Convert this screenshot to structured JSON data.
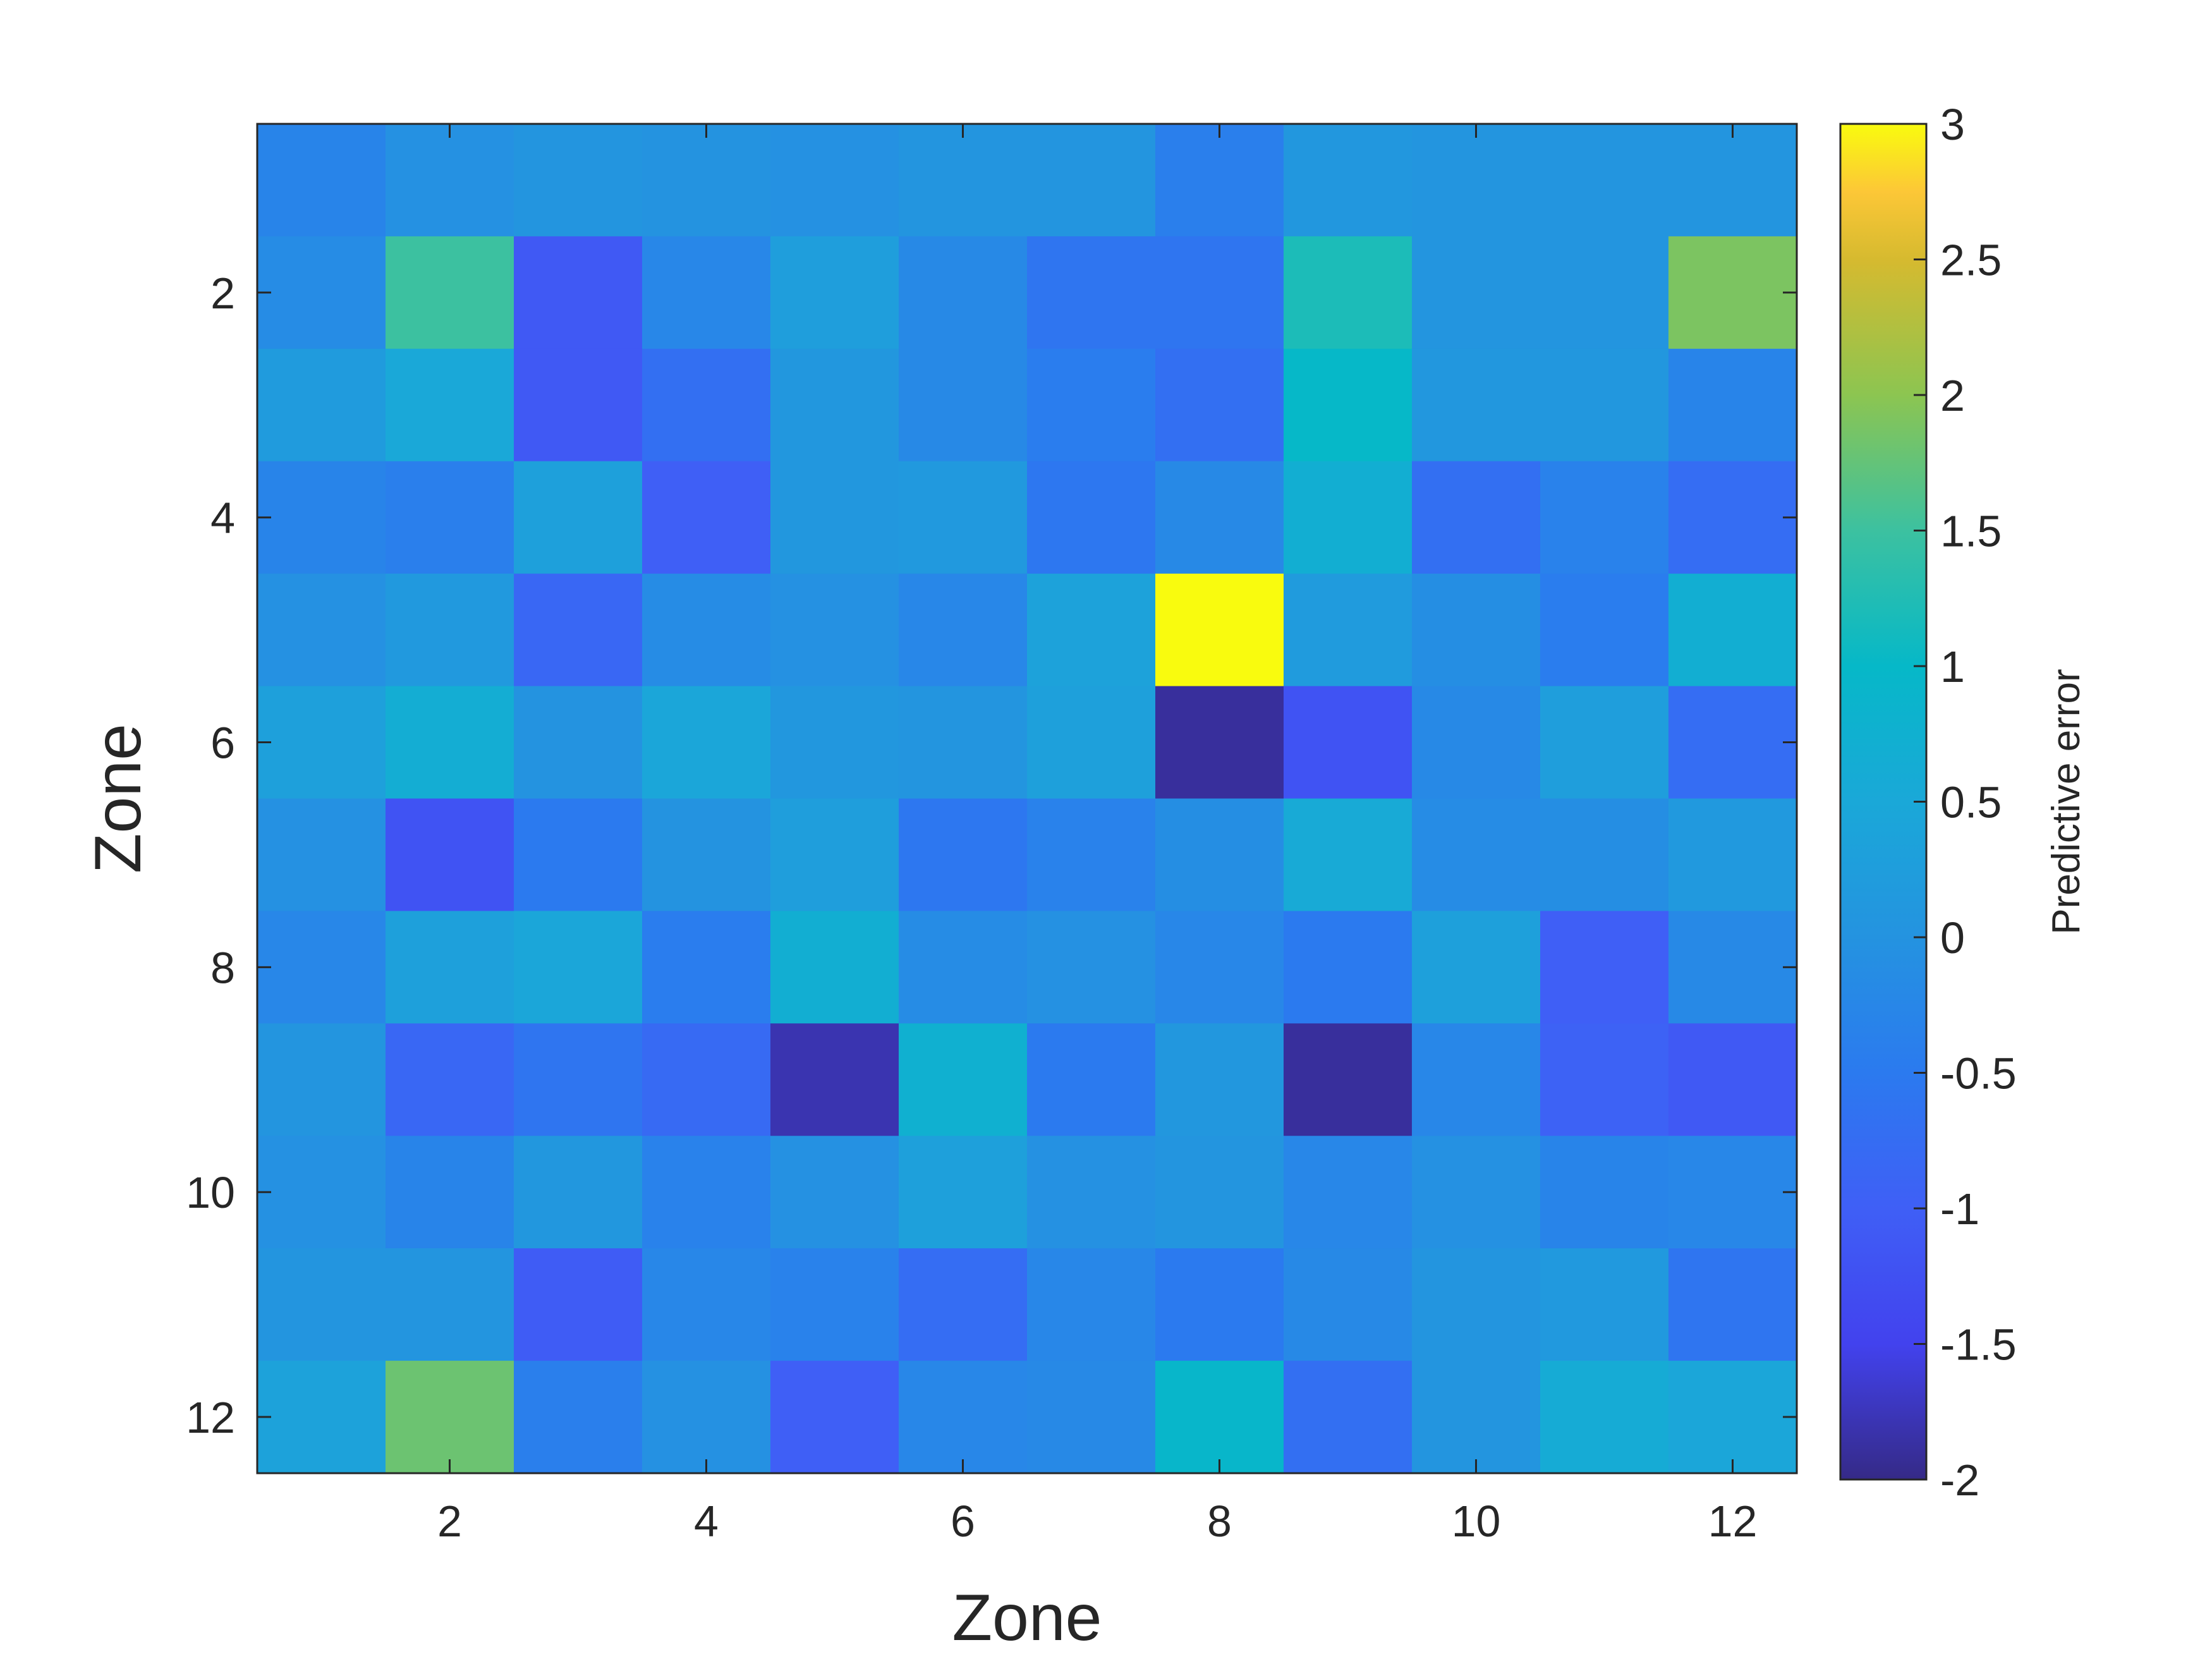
{
  "chart_data": {
    "type": "heatmap",
    "title": "",
    "xlabel": "Zone",
    "ylabel": "Zone",
    "x": [
      1,
      2,
      3,
      4,
      5,
      6,
      7,
      8,
      9,
      10,
      11,
      12
    ],
    "y": [
      1,
      2,
      3,
      4,
      5,
      6,
      7,
      8,
      9,
      10,
      11,
      12
    ],
    "xlim": [
      0.5,
      12.5
    ],
    "ylim": [
      0.5,
      12.5
    ],
    "y_direction": "reverse",
    "xticks": [
      2,
      4,
      6,
      8,
      10,
      12
    ],
    "yticks": [
      2,
      4,
      6,
      8,
      10,
      12
    ],
    "xtick_labels": [
      "2",
      "4",
      "6",
      "8",
      "10",
      "12"
    ],
    "ytick_labels": [
      "2",
      "4",
      "6",
      "8",
      "10",
      "12"
    ],
    "colormap": "parula",
    "clim": [
      -2,
      3
    ],
    "colorbar": {
      "label": "Predictive error",
      "ticks": [
        -2,
        -1.5,
        -1,
        -0.5,
        0,
        0.5,
        1,
        1.5,
        2,
        2.5,
        3
      ],
      "tick_labels": [
        "-2",
        "-1.5",
        "-1",
        "-0.5",
        "0",
        "0.5",
        "1",
        "1.5",
        "2",
        "2.5",
        "3"
      ]
    },
    "grid": false,
    "values": [
      [
        -0.3,
        -0.05,
        0.05,
        0.0,
        -0.05,
        0.05,
        0.05,
        -0.4,
        0.1,
        0.05,
        0.05,
        0.05
      ],
      [
        -0.15,
        1.5,
        -1.1,
        -0.25,
        0.25,
        -0.2,
        -0.6,
        -0.6,
        1.2,
        0.05,
        0.05,
        1.9
      ],
      [
        0.2,
        0.5,
        -1.1,
        -0.7,
        0.1,
        -0.2,
        -0.45,
        -0.7,
        1.0,
        0.1,
        0.1,
        -0.3
      ],
      [
        -0.3,
        -0.4,
        0.3,
        -1.0,
        0.1,
        0.15,
        -0.55,
        -0.2,
        0.7,
        -0.7,
        -0.35,
        -0.75
      ],
      [
        -0.05,
        0.15,
        -0.85,
        -0.15,
        -0.05,
        -0.25,
        0.35,
        3.0,
        0.2,
        -0.1,
        -0.45,
        0.7
      ],
      [
        0.3,
        0.65,
        0.0,
        0.45,
        0.1,
        0.05,
        0.3,
        -1.9,
        -1.2,
        -0.2,
        0.25,
        -0.75
      ],
      [
        -0.05,
        -1.2,
        -0.5,
        0.0,
        0.25,
        -0.55,
        -0.35,
        -0.1,
        0.55,
        -0.15,
        -0.1,
        0.15
      ],
      [
        -0.25,
        0.3,
        0.45,
        -0.45,
        0.7,
        -0.15,
        -0.05,
        -0.25,
        -0.5,
        0.3,
        -1.0,
        -0.2
      ],
      [
        0.05,
        -0.85,
        -0.6,
        -0.8,
        -1.8,
        0.75,
        -0.5,
        0.1,
        -1.9,
        -0.25,
        -0.95,
        -1.1
      ],
      [
        -0.05,
        -0.3,
        0.1,
        -0.35,
        -0.05,
        0.3,
        -0.05,
        0.05,
        -0.25,
        -0.05,
        -0.3,
        -0.25
      ],
      [
        0.05,
        0.05,
        -1.05,
        -0.25,
        -0.35,
        -0.75,
        -0.25,
        -0.5,
        -0.2,
        0.05,
        0.15,
        -0.6
      ],
      [
        0.35,
        1.8,
        -0.4,
        -0.05,
        -1.0,
        -0.25,
        -0.2,
        0.95,
        -0.7,
        0.05,
        0.6,
        0.45
      ]
    ]
  }
}
